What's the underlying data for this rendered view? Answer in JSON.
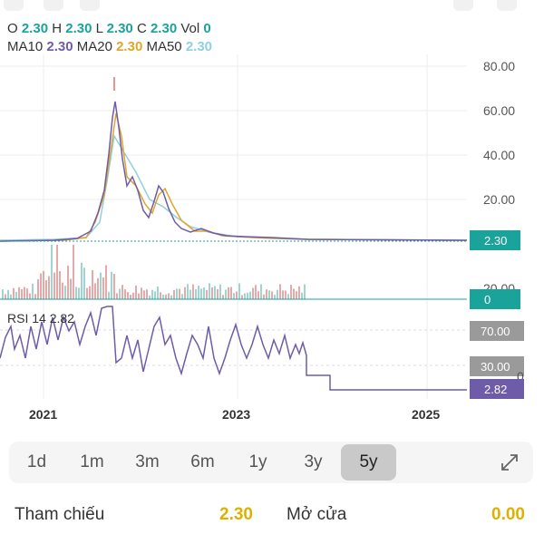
{
  "ohlc": {
    "o_label": "O",
    "o": "2.30",
    "h_label": "H",
    "h": "2.30",
    "l_label": "L",
    "l": "2.30",
    "c_label": "C",
    "c": "2.30",
    "vol_label": "Vol",
    "vol": "0"
  },
  "ma": {
    "ma10_label": "MA10",
    "ma10": "2.30",
    "ma20_label": "MA20",
    "ma20": "2.30",
    "ma50_label": "MA50",
    "ma50": "2.30"
  },
  "price_axis": [
    "80.00",
    "60.00",
    "40.00",
    "20.00"
  ],
  "price_tag": "2.30",
  "volume_axis_label": "20.00",
  "volume_tag": "0",
  "rsi": {
    "label": "RSI 14 2.82",
    "levels": [
      "70.00",
      "30.00"
    ],
    "value_tag": "2.82",
    "partial_label": "0"
  },
  "x_axis": [
    "2021",
    "2023",
    "2025"
  ],
  "timeframes": [
    "1d",
    "1m",
    "3m",
    "6m",
    "1y",
    "3y",
    "5y"
  ],
  "active_timeframe": "5y",
  "info": {
    "ref_label": "Tham chiếu",
    "ref_value": "2.30",
    "open_label": "Mở cửa",
    "open_value": "0.00"
  },
  "colors": {
    "price_tag": "#1aa39a",
    "rsi_line": "#6f5ca8",
    "ma20": "#e0a52c",
    "ma50": "#8fd0e0",
    "accent_value": "#e0b000"
  },
  "icons": [
    "expand-icon"
  ],
  "chart_data": {
    "type": "line",
    "x": [
      "2020-07",
      "2020-10",
      "2021-01",
      "2021-04",
      "2021-07",
      "2021-10",
      "2021-11",
      "2021-12",
      "2022-01",
      "2022-03",
      "2022-05",
      "2022-06",
      "2022-08",
      "2022-10",
      "2022-12",
      "2023-03",
      "2023-06",
      "2023-09",
      "2023-12",
      "2024-03",
      "2024-06",
      "2024-09",
      "2024-12",
      "2025-03"
    ],
    "series": [
      {
        "name": "Close",
        "values": [
          2.5,
          2.5,
          2.6,
          3,
          12,
          20,
          62,
          45,
          32,
          25,
          20,
          27,
          14,
          8,
          6,
          5,
          3,
          3,
          2.5,
          2.3,
          2.3,
          2.3,
          2.3,
          2.3
        ]
      }
    ],
    "ylim": [
      0,
      80
    ],
    "y_ticks": [
      20,
      40,
      60,
      80
    ]
  }
}
